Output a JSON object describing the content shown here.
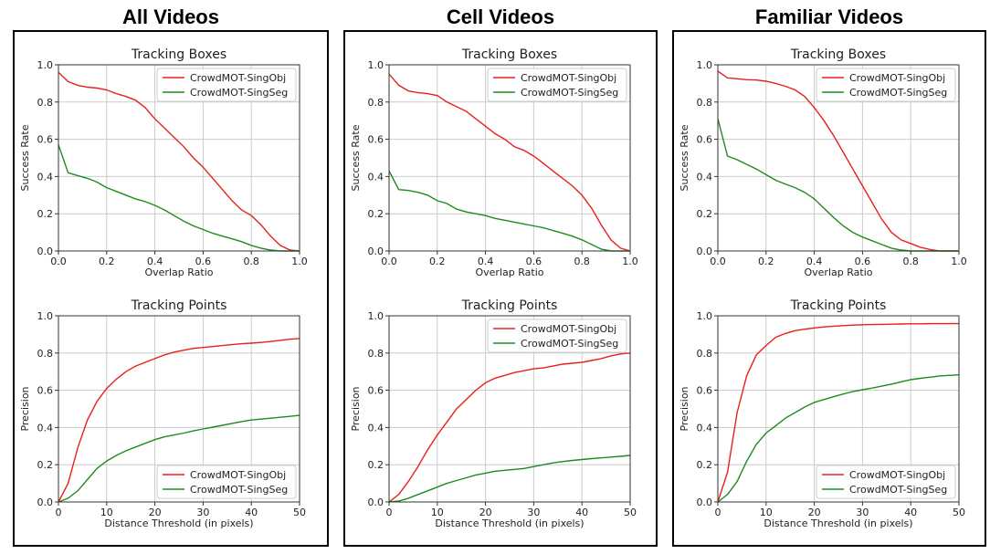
{
  "columns": [
    {
      "title": "All Videos",
      "charts": [
        {
          "type": "line",
          "title": "Tracking Boxes",
          "xlabel": "Overlap Ratio",
          "ylabel": "Success Rate",
          "xlim": [
            0,
            1
          ],
          "ylim": [
            0,
            1
          ],
          "xticks": [
            0.0,
            0.2,
            0.4,
            0.6,
            0.8,
            1.0
          ],
          "yticks": [
            0.0,
            0.2,
            0.4,
            0.6,
            0.8,
            1.0
          ],
          "xtick_labels": [
            "0.0",
            "0.2",
            "0.4",
            "0.6",
            "0.8",
            "1.0"
          ],
          "ytick_labels": [
            "0.0",
            "0.2",
            "0.4",
            "0.6",
            "0.8",
            "1.0"
          ],
          "legend_position": "top-right",
          "grid": true,
          "x": [
            0.0,
            0.04,
            0.08,
            0.12,
            0.16,
            0.2,
            0.24,
            0.28,
            0.32,
            0.36,
            0.4,
            0.44,
            0.48,
            0.52,
            0.56,
            0.6,
            0.64,
            0.68,
            0.72,
            0.76,
            0.8,
            0.84,
            0.88,
            0.92,
            0.96,
            1.0
          ],
          "series": [
            {
              "name": "CrowdMOT-SingObj",
              "color": "#e8201c",
              "values": [
                0.96,
                0.91,
                0.89,
                0.88,
                0.875,
                0.865,
                0.845,
                0.83,
                0.81,
                0.77,
                0.71,
                0.66,
                0.61,
                0.56,
                0.5,
                0.45,
                0.39,
                0.33,
                0.27,
                0.22,
                0.19,
                0.14,
                0.08,
                0.03,
                0.005,
                0.0
              ]
            },
            {
              "name": "CrowdMOT-SingSeg",
              "color": "#1f8a1f",
              "values": [
                0.57,
                0.42,
                0.405,
                0.39,
                0.37,
                0.34,
                0.32,
                0.3,
                0.28,
                0.265,
                0.245,
                0.22,
                0.19,
                0.16,
                0.135,
                0.115,
                0.095,
                0.08,
                0.065,
                0.05,
                0.03,
                0.015,
                0.005,
                0.0,
                0.0,
                0.0
              ]
            }
          ]
        },
        {
          "type": "line",
          "title": "Tracking Points",
          "xlabel": "Distance Threshold (in pixels)",
          "ylabel": "Precision",
          "xlim": [
            0,
            50
          ],
          "ylim": [
            0,
            1
          ],
          "xticks": [
            0,
            10,
            20,
            30,
            40,
            50
          ],
          "yticks": [
            0.0,
            0.2,
            0.4,
            0.6,
            0.8,
            1.0
          ],
          "xtick_labels": [
            "0",
            "10",
            "20",
            "30",
            "40",
            "50"
          ],
          "ytick_labels": [
            "0.0",
            "0.2",
            "0.4",
            "0.6",
            "0.8",
            "1.0"
          ],
          "legend_position": "bottom-right",
          "grid": true,
          "x": [
            0,
            2,
            4,
            6,
            8,
            10,
            12,
            14,
            16,
            18,
            20,
            22,
            24,
            26,
            28,
            30,
            32,
            34,
            36,
            38,
            40,
            42,
            44,
            46,
            48,
            50
          ],
          "series": [
            {
              "name": "CrowdMOT-SingObj",
              "color": "#e8201c",
              "values": [
                0.0,
                0.1,
                0.29,
                0.44,
                0.54,
                0.61,
                0.66,
                0.7,
                0.73,
                0.75,
                0.77,
                0.79,
                0.805,
                0.815,
                0.825,
                0.83,
                0.835,
                0.84,
                0.845,
                0.85,
                0.853,
                0.857,
                0.862,
                0.868,
                0.874,
                0.878
              ]
            },
            {
              "name": "CrowdMOT-SingSeg",
              "color": "#1f8a1f",
              "values": [
                0.0,
                0.02,
                0.06,
                0.12,
                0.18,
                0.22,
                0.25,
                0.275,
                0.295,
                0.315,
                0.335,
                0.35,
                0.36,
                0.37,
                0.382,
                0.392,
                0.402,
                0.412,
                0.422,
                0.432,
                0.44,
                0.445,
                0.45,
                0.455,
                0.46,
                0.465
              ]
            }
          ]
        }
      ]
    },
    {
      "title": "Cell Videos",
      "charts": [
        {
          "type": "line",
          "title": "Tracking Boxes",
          "xlabel": "Overlap Ratio",
          "ylabel": "Success Rate",
          "xlim": [
            0,
            1
          ],
          "ylim": [
            0,
            1
          ],
          "xticks": [
            0.0,
            0.2,
            0.4,
            0.6,
            0.8,
            1.0
          ],
          "yticks": [
            0.0,
            0.2,
            0.4,
            0.6,
            0.8,
            1.0
          ],
          "xtick_labels": [
            "0.0",
            "0.2",
            "0.4",
            "0.6",
            "0.8",
            "1.0"
          ],
          "ytick_labels": [
            "0.0",
            "0.2",
            "0.4",
            "0.6",
            "0.8",
            "1.0"
          ],
          "legend_position": "top-right",
          "grid": true,
          "x": [
            0.0,
            0.04,
            0.08,
            0.12,
            0.16,
            0.2,
            0.24,
            0.28,
            0.32,
            0.36,
            0.4,
            0.44,
            0.48,
            0.52,
            0.56,
            0.6,
            0.64,
            0.68,
            0.72,
            0.76,
            0.8,
            0.84,
            0.88,
            0.92,
            0.96,
            1.0
          ],
          "series": [
            {
              "name": "CrowdMOT-SingObj",
              "color": "#e8201c",
              "values": [
                0.95,
                0.89,
                0.86,
                0.85,
                0.845,
                0.835,
                0.8,
                0.775,
                0.75,
                0.71,
                0.67,
                0.63,
                0.6,
                0.56,
                0.54,
                0.51,
                0.47,
                0.43,
                0.39,
                0.35,
                0.3,
                0.23,
                0.14,
                0.06,
                0.015,
                0.0
              ]
            },
            {
              "name": "CrowdMOT-SingSeg",
              "color": "#1f8a1f",
              "values": [
                0.43,
                0.33,
                0.325,
                0.315,
                0.3,
                0.27,
                0.255,
                0.225,
                0.21,
                0.2,
                0.19,
                0.175,
                0.165,
                0.155,
                0.145,
                0.135,
                0.125,
                0.11,
                0.095,
                0.08,
                0.06,
                0.035,
                0.01,
                0.0,
                0.0,
                0.0
              ]
            }
          ]
        },
        {
          "type": "line",
          "title": "Tracking Points",
          "xlabel": "Distance Threshold (in pixels)",
          "ylabel": "Precision",
          "xlim": [
            0,
            50
          ],
          "ylim": [
            0,
            1
          ],
          "xticks": [
            0,
            10,
            20,
            30,
            40,
            50
          ],
          "yticks": [
            0.0,
            0.2,
            0.4,
            0.6,
            0.8,
            1.0
          ],
          "xtick_labels": [
            "0",
            "10",
            "20",
            "30",
            "40",
            "50"
          ],
          "ytick_labels": [
            "0.0",
            "0.2",
            "0.4",
            "0.6",
            "0.8",
            "1.0"
          ],
          "legend_position": "top-right",
          "grid": true,
          "x": [
            0,
            2,
            4,
            6,
            8,
            10,
            12,
            14,
            16,
            18,
            20,
            22,
            24,
            26,
            28,
            30,
            32,
            34,
            36,
            38,
            40,
            42,
            44,
            46,
            48,
            50
          ],
          "series": [
            {
              "name": "CrowdMOT-SingObj",
              "color": "#e8201c",
              "values": [
                0.0,
                0.04,
                0.11,
                0.19,
                0.28,
                0.36,
                0.43,
                0.5,
                0.55,
                0.6,
                0.64,
                0.665,
                0.68,
                0.695,
                0.705,
                0.715,
                0.72,
                0.73,
                0.74,
                0.745,
                0.75,
                0.76,
                0.77,
                0.785,
                0.795,
                0.8
              ]
            },
            {
              "name": "CrowdMOT-SingSeg",
              "color": "#1f8a1f",
              "values": [
                0.0,
                0.005,
                0.02,
                0.04,
                0.06,
                0.08,
                0.1,
                0.115,
                0.13,
                0.145,
                0.155,
                0.165,
                0.17,
                0.175,
                0.18,
                0.19,
                0.2,
                0.21,
                0.217,
                0.223,
                0.228,
                0.233,
                0.237,
                0.241,
                0.245,
                0.25
              ]
            }
          ]
        }
      ]
    },
    {
      "title": "Familiar Videos",
      "charts": [
        {
          "type": "line",
          "title": "Tracking Boxes",
          "xlabel": "Overlap Ratio",
          "ylabel": "Success Rate",
          "xlim": [
            0,
            1
          ],
          "ylim": [
            0,
            1
          ],
          "xticks": [
            0.0,
            0.2,
            0.4,
            0.6,
            0.8,
            1.0
          ],
          "yticks": [
            0.0,
            0.2,
            0.4,
            0.6,
            0.8,
            1.0
          ],
          "xtick_labels": [
            "0.0",
            "0.2",
            "0.4",
            "0.6",
            "0.8",
            "1.0"
          ],
          "ytick_labels": [
            "0.0",
            "0.2",
            "0.4",
            "0.6",
            "0.8",
            "1.0"
          ],
          "legend_position": "top-right",
          "grid": true,
          "x": [
            0.0,
            0.04,
            0.08,
            0.12,
            0.16,
            0.2,
            0.24,
            0.28,
            0.32,
            0.36,
            0.4,
            0.44,
            0.48,
            0.52,
            0.56,
            0.6,
            0.64,
            0.68,
            0.72,
            0.76,
            0.8,
            0.84,
            0.88,
            0.92,
            0.96,
            1.0
          ],
          "series": [
            {
              "name": "CrowdMOT-SingObj",
              "color": "#e8201c",
              "values": [
                0.965,
                0.93,
                0.925,
                0.92,
                0.918,
                0.912,
                0.9,
                0.885,
                0.865,
                0.83,
                0.77,
                0.7,
                0.62,
                0.53,
                0.44,
                0.35,
                0.26,
                0.17,
                0.1,
                0.06,
                0.04,
                0.02,
                0.008,
                0.0,
                0.0,
                0.0
              ]
            },
            {
              "name": "CrowdMOT-SingSeg",
              "color": "#1f8a1f",
              "values": [
                0.71,
                0.51,
                0.49,
                0.465,
                0.44,
                0.41,
                0.38,
                0.36,
                0.34,
                0.315,
                0.28,
                0.23,
                0.18,
                0.135,
                0.1,
                0.075,
                0.055,
                0.035,
                0.015,
                0.005,
                0.0,
                0.0,
                0.0,
                0.0,
                0.0,
                0.0
              ]
            }
          ]
        },
        {
          "type": "line",
          "title": "Tracking Points",
          "xlabel": "Distance Threshold (in pixels)",
          "ylabel": "Precision",
          "xlim": [
            0,
            50
          ],
          "ylim": [
            0,
            1
          ],
          "xticks": [
            0,
            10,
            20,
            30,
            40,
            50
          ],
          "yticks": [
            0.0,
            0.2,
            0.4,
            0.6,
            0.8,
            1.0
          ],
          "xtick_labels": [
            "0",
            "10",
            "20",
            "30",
            "40",
            "50"
          ],
          "ytick_labels": [
            "0.0",
            "0.2",
            "0.4",
            "0.6",
            "0.8",
            "1.0"
          ],
          "legend_position": "bottom-right",
          "grid": true,
          "x": [
            0,
            2,
            4,
            6,
            8,
            10,
            12,
            14,
            16,
            18,
            20,
            22,
            24,
            26,
            28,
            30,
            32,
            34,
            36,
            38,
            40,
            42,
            44,
            46,
            48,
            50
          ],
          "series": [
            {
              "name": "CrowdMOT-SingObj",
              "color": "#e8201c",
              "values": [
                0.0,
                0.16,
                0.48,
                0.68,
                0.79,
                0.84,
                0.885,
                0.905,
                0.92,
                0.928,
                0.935,
                0.94,
                0.944,
                0.947,
                0.95,
                0.952,
                0.953,
                0.954,
                0.955,
                0.956,
                0.957,
                0.957,
                0.958,
                0.958,
                0.958,
                0.958
              ]
            },
            {
              "name": "CrowdMOT-SingSeg",
              "color": "#1f8a1f",
              "values": [
                0.0,
                0.04,
                0.11,
                0.22,
                0.31,
                0.37,
                0.41,
                0.45,
                0.48,
                0.51,
                0.535,
                0.55,
                0.565,
                0.58,
                0.593,
                0.603,
                0.612,
                0.622,
                0.633,
                0.645,
                0.657,
                0.664,
                0.67,
                0.677,
                0.68,
                0.683
              ]
            }
          ]
        }
      ]
    }
  ]
}
